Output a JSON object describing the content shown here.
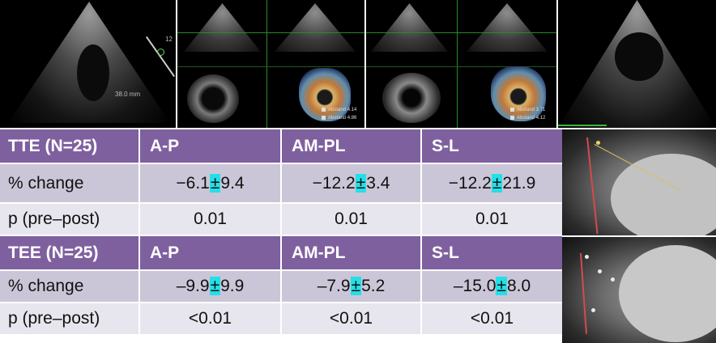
{
  "images": {
    "tte_echo": {
      "depth_label": "12",
      "measure_label": "38.0 mm"
    },
    "tee_3d_a": {
      "legend": [
        {
          "label": "Abstand",
          "value": "4.14"
        },
        {
          "label": "Abstand",
          "value": "4.86"
        }
      ]
    },
    "tee_3d_b": {
      "legend": [
        {
          "label": "Abstand",
          "value": "3.71"
        },
        {
          "label": "Abstand",
          "value": "4.12"
        }
      ]
    }
  },
  "tte": {
    "header": [
      "TTE (N=25)",
      "A-P",
      "AM-PL",
      "S-L"
    ],
    "rows": [
      {
        "label": "% change",
        "cells": [
          {
            "a": "−6.1",
            "pm": "±",
            "b": "9.4"
          },
          {
            "a": "−12.2",
            "pm": "±",
            "b": "3.4"
          },
          {
            "a": "−12.2",
            "pm": "±",
            "b": "21.9"
          }
        ]
      },
      {
        "label": "p (pre–post)",
        "values": [
          "0.01",
          "0.01",
          "0.01"
        ]
      }
    ]
  },
  "tee": {
    "header": [
      "TEE (N=25)",
      "A-P",
      "AM-PL",
      "S-L"
    ],
    "rows": [
      {
        "label": "% change",
        "cells": [
          {
            "a": "–9.9",
            "pm": "±",
            "b": "9.9"
          },
          {
            "a": "–7.9",
            "pm": "±",
            "b": "5.2"
          },
          {
            "a": "–15.0",
            "pm": "±",
            "b": "8.0"
          }
        ]
      },
      {
        "label": "p (pre–post)",
        "values": [
          "<0.01",
          "<0.01",
          "<0.01"
        ]
      }
    ]
  },
  "colors": {
    "header_bg": "#7f609f",
    "row_dark": "#cbc6d7",
    "row_light": "#e7e5ee",
    "highlight": "#22e0e8"
  }
}
